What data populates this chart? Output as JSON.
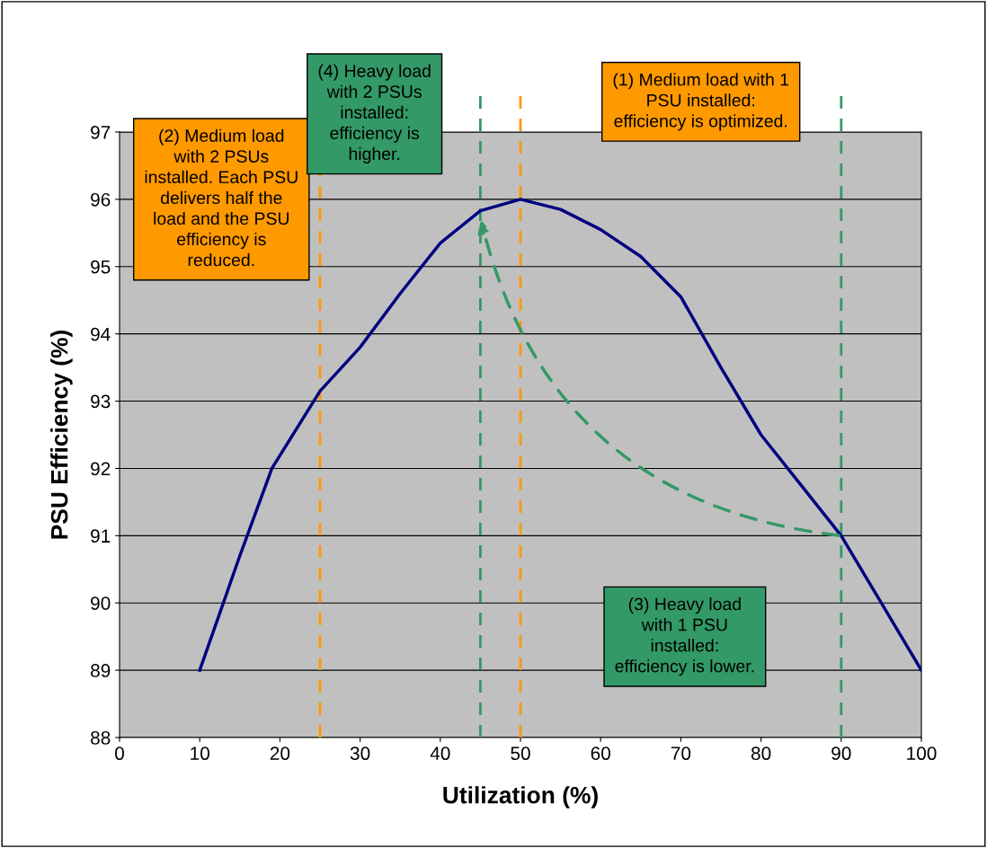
{
  "chart_data": {
    "type": "line",
    "xlabel": "Utilization (%)",
    "ylabel": "PSU Efficiency (%)",
    "x": [
      10,
      15,
      19,
      25,
      30,
      35,
      40,
      45,
      50,
      55,
      60,
      65,
      70,
      75,
      80,
      85,
      90,
      95,
      100
    ],
    "series": [
      {
        "color": "#000080",
        "values": [
          89.0,
          90.7,
          92.0,
          93.15,
          93.8,
          94.6,
          95.35,
          95.83,
          96.0,
          95.85,
          95.55,
          95.15,
          94.55,
          93.5,
          92.5,
          91.75,
          91.0,
          90.0,
          89.0
        ]
      }
    ],
    "xlim": [
      0,
      100
    ],
    "xticks": [
      0,
      10,
      20,
      30,
      40,
      50,
      60,
      70,
      80,
      90,
      100
    ],
    "ylim": [
      88,
      97
    ],
    "yticks": [
      88,
      89,
      90,
      91,
      92,
      93,
      94,
      95,
      96,
      97
    ],
    "grid": "y",
    "marker": "none",
    "line_style": "solid",
    "legend": false,
    "ref_lines": [
      {
        "axis": "x",
        "value": 25,
        "color": "#ff9900",
        "line_style": "dashed"
      },
      {
        "axis": "x",
        "value": 50,
        "color": "#ff9900",
        "line_style": "dashed"
      },
      {
        "axis": "x",
        "value": 45,
        "color": "#339966",
        "line_style": "dashed"
      },
      {
        "axis": "x",
        "value": 90,
        "color": "#339966",
        "line_style": "dashed"
      }
    ],
    "annotations": [
      "(1) Medium load with 1 PSU installed: efficiency is optimized.",
      "(2) Medium load with 2 PSUs installed. Each PSU delivers half the load and the PSU efficiency is reduced.",
      "(3) Heavy load with 1 PSU installed: efficiency is lower.",
      "(4) Heavy load with 2 PSUs installed: efficiency is higher."
    ]
  }
}
